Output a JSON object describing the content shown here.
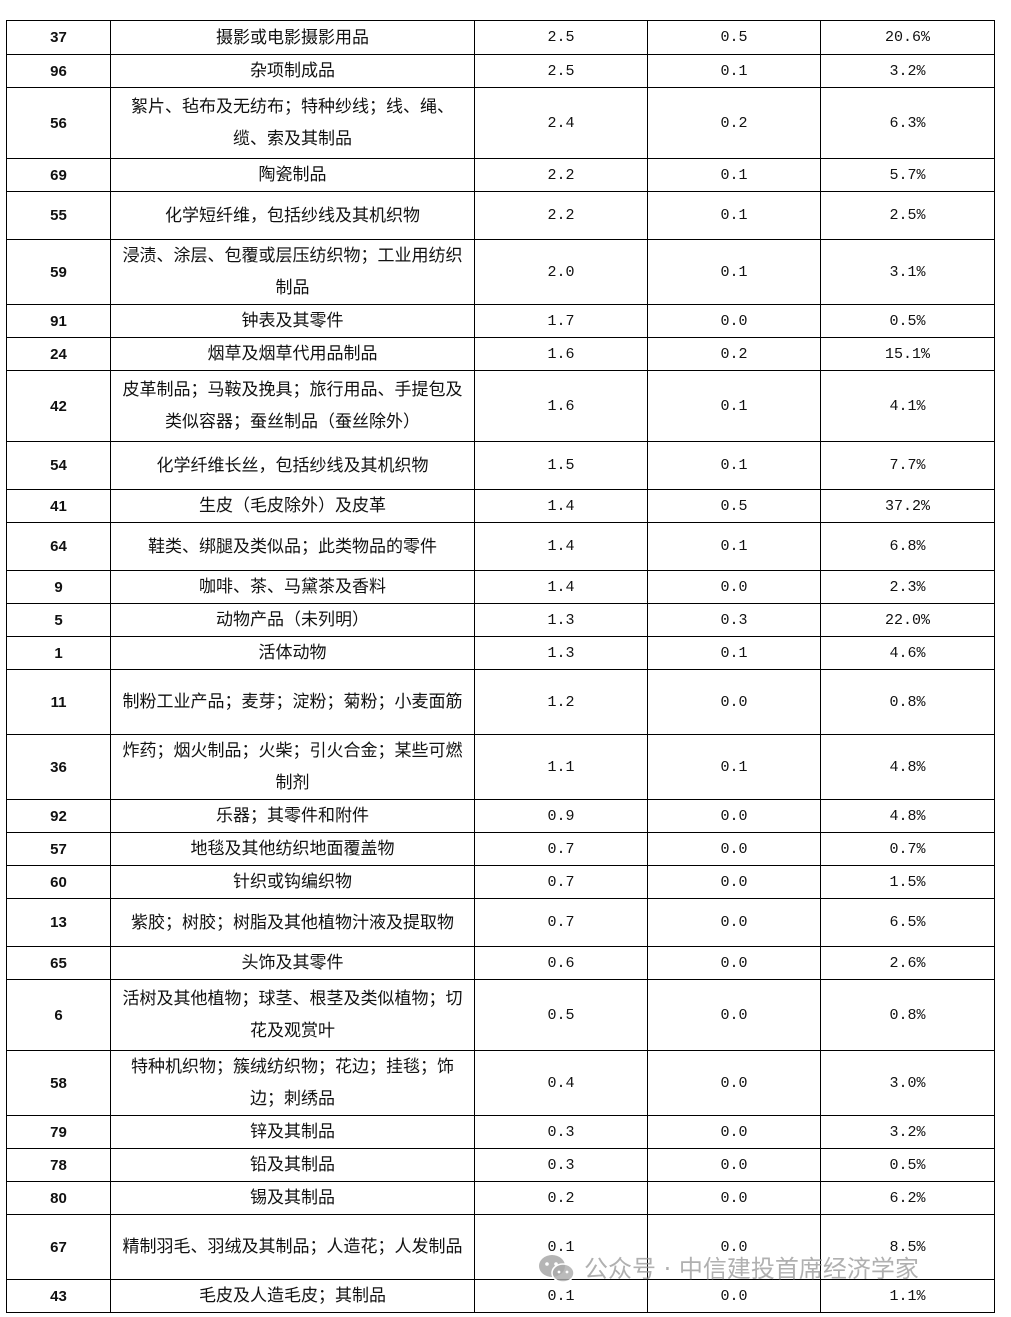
{
  "table": {
    "rows": [
      {
        "code": "37",
        "name": "摄影或电影摄影用品",
        "v1": "2.5",
        "v2": "0.5",
        "pct": "20.6%"
      },
      {
        "code": "96",
        "name": "杂项制成品",
        "v1": "2.5",
        "v2": "0.1",
        "pct": "3.2%"
      },
      {
        "code": "56",
        "name": "絮片、毡布及无纺布；特种纱线；线、绳、缆、索及其制品",
        "v1": "2.4",
        "v2": "0.2",
        "pct": "6.3%"
      },
      {
        "code": "69",
        "name": "陶瓷制品",
        "v1": "2.2",
        "v2": "0.1",
        "pct": "5.7%"
      },
      {
        "code": "55",
        "name": "化学短纤维，包括纱线及其机织物",
        "v1": "2.2",
        "v2": "0.1",
        "pct": "2.5%"
      },
      {
        "code": "59",
        "name": "浸渍、涂层、包覆或层压纺织物；工业用纺织制品",
        "v1": "2.0",
        "v2": "0.1",
        "pct": "3.1%"
      },
      {
        "code": "91",
        "name": "钟表及其零件",
        "v1": "1.7",
        "v2": "0.0",
        "pct": "0.5%"
      },
      {
        "code": "24",
        "name": "烟草及烟草代用品制品",
        "v1": "1.6",
        "v2": "0.2",
        "pct": "15.1%"
      },
      {
        "code": "42",
        "name": "皮革制品；马鞍及挽具；旅行用品、手提包及类似容器；蚕丝制品（蚕丝除外）",
        "v1": "1.6",
        "v2": "0.1",
        "pct": "4.1%"
      },
      {
        "code": "54",
        "name": "化学纤维长丝，包括纱线及其机织物",
        "v1": "1.5",
        "v2": "0.1",
        "pct": "7.7%"
      },
      {
        "code": "41",
        "name": "生皮（毛皮除外）及皮革",
        "v1": "1.4",
        "v2": "0.5",
        "pct": "37.2%"
      },
      {
        "code": "64",
        "name": "鞋类、绑腿及类似品；此类物品的零件",
        "v1": "1.4",
        "v2": "0.1",
        "pct": "6.8%"
      },
      {
        "code": "9",
        "name": "咖啡、茶、马黛茶及香料",
        "v1": "1.4",
        "v2": "0.0",
        "pct": "2.3%"
      },
      {
        "code": "5",
        "name": "动物产品（未列明）",
        "v1": "1.3",
        "v2": "0.3",
        "pct": "22.0%"
      },
      {
        "code": "1",
        "name": "活体动物",
        "v1": "1.3",
        "v2": "0.1",
        "pct": "4.6%"
      },
      {
        "code": "11",
        "name": "制粉工业产品；麦芽；淀粉；菊粉；小麦面筋",
        "v1": "1.2",
        "v2": "0.0",
        "pct": "0.8%"
      },
      {
        "code": "36",
        "name": "炸药；烟火制品；火柴；引火合金；某些可燃制剂",
        "v1": "1.1",
        "v2": "0.1",
        "pct": "4.8%"
      },
      {
        "code": "92",
        "name": "乐器；其零件和附件",
        "v1": "0.9",
        "v2": "0.0",
        "pct": "4.8%"
      },
      {
        "code": "57",
        "name": "地毯及其他纺织地面覆盖物",
        "v1": "0.7",
        "v2": "0.0",
        "pct": "0.7%"
      },
      {
        "code": "60",
        "name": "针织或钩编织物",
        "v1": "0.7",
        "v2": "0.0",
        "pct": "1.5%"
      },
      {
        "code": "13",
        "name": "紫胶；树胶；树脂及其他植物汁液及提取物",
        "v1": "0.7",
        "v2": "0.0",
        "pct": "6.5%"
      },
      {
        "code": "65",
        "name": "头饰及其零件",
        "v1": "0.6",
        "v2": "0.0",
        "pct": "2.6%"
      },
      {
        "code": "6",
        "name": "活树及其他植物；球茎、根茎及类似植物；切花及观赏叶",
        "v1": "0.5",
        "v2": "0.0",
        "pct": "0.8%"
      },
      {
        "code": "58",
        "name": "特种机织物；簇绒纺织物；花边；挂毯；饰边；刺绣品",
        "v1": "0.4",
        "v2": "0.0",
        "pct": "3.0%"
      },
      {
        "code": "79",
        "name": "锌及其制品",
        "v1": "0.3",
        "v2": "0.0",
        "pct": "3.2%"
      },
      {
        "code": "78",
        "name": "铅及其制品",
        "v1": "0.3",
        "v2": "0.0",
        "pct": "0.5%"
      },
      {
        "code": "80",
        "name": "锡及其制品",
        "v1": "0.2",
        "v2": "0.0",
        "pct": "6.2%"
      },
      {
        "code": "67",
        "name": "精制羽毛、羽绒及其制品；人造花；人发制品",
        "v1": "0.1",
        "v2": "0.0",
        "pct": "8.5%"
      },
      {
        "code": "43",
        "name": "毛皮及人造毛皮；其制品",
        "v1": "0.1",
        "v2": "0.0",
        "pct": "1.1%"
      }
    ]
  },
  "watermark": {
    "text": "公众号 · 中信建投首席经济学家",
    "icon": "wechat-icon"
  }
}
